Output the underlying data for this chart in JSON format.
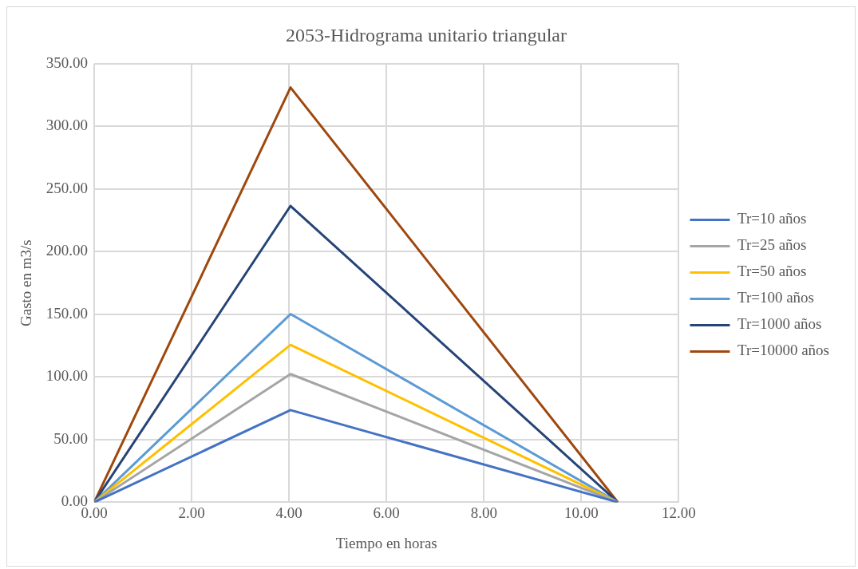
{
  "chart_data": {
    "type": "line",
    "title": "2053-Hidrograma unitario triangular",
    "xlabel": "Tiempo en horas",
    "ylabel": "Gasto en m3/s",
    "x": [
      0,
      4.03,
      10.75
    ],
    "series": [
      {
        "name": "Tr=10 años",
        "color": "#4472c4",
        "values": [
          0,
          73.6,
          0
        ]
      },
      {
        "name": "Tr=25 años",
        "color": "#a5a5a5",
        "values": [
          0,
          102.3,
          0
        ]
      },
      {
        "name": "Tr=50 años",
        "color": "#ffc000",
        "values": [
          0,
          125.6,
          0
        ]
      },
      {
        "name": "Tr=100 años",
        "color": "#5b9bd5",
        "values": [
          0,
          150.2,
          0
        ]
      },
      {
        "name": "Tr=1000 años",
        "color": "#264478",
        "values": [
          0,
          236.5,
          0
        ]
      },
      {
        "name": "Tr=10000 años",
        "color": "#9e480e",
        "values": [
          0,
          331,
          0
        ]
      }
    ],
    "xlim": [
      0,
      12
    ],
    "xticks": [
      {
        "value": 0,
        "label": "0.00"
      },
      {
        "value": 2,
        "label": "2.00"
      },
      {
        "value": 4,
        "label": "4.00"
      },
      {
        "value": 6,
        "label": "6.00"
      },
      {
        "value": 8,
        "label": "8.00"
      },
      {
        "value": 10,
        "label": "10.00"
      },
      {
        "value": 12,
        "label": "12.00"
      }
    ],
    "ylim": [
      0,
      350
    ],
    "yticks": [
      {
        "value": 0,
        "label": "0.00"
      },
      {
        "value": 50,
        "label": "50.00"
      },
      {
        "value": 100,
        "label": "100.00"
      },
      {
        "value": 150,
        "label": "150.00"
      },
      {
        "value": 200,
        "label": "200.00"
      },
      {
        "value": 250,
        "label": "250.00"
      },
      {
        "value": 300,
        "label": "300.00"
      },
      {
        "value": 350,
        "label": "350.00"
      }
    ],
    "grid": true,
    "legend": "right",
    "marker": "none",
    "line_style": "solid"
  }
}
